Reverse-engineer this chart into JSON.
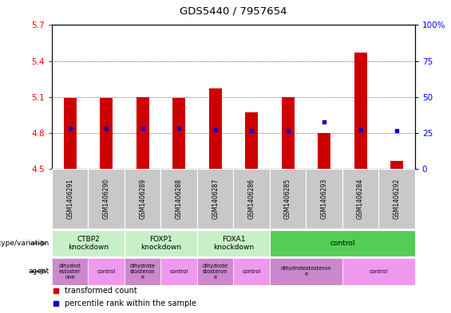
{
  "title": "GDS5440 / 7957654",
  "samples": [
    "GSM1406291",
    "GSM1406290",
    "GSM1406289",
    "GSM1406288",
    "GSM1406287",
    "GSM1406286",
    "GSM1406285",
    "GSM1406293",
    "GSM1406284",
    "GSM1406292"
  ],
  "transformed_count": [
    5.09,
    5.09,
    5.1,
    5.09,
    5.17,
    4.97,
    5.1,
    4.8,
    5.47,
    4.57
  ],
  "percentile_values": [
    28.5,
    28.5,
    28.5,
    28.5,
    27.5,
    26.5,
    26.5,
    33.0,
    27.5,
    26.5
  ],
  "ylim_left": [
    4.5,
    5.7
  ],
  "ylim_right": [
    0,
    100
  ],
  "yticks_left": [
    4.5,
    4.8,
    5.1,
    5.4,
    5.7
  ],
  "yticks_right": [
    0,
    25,
    50,
    75,
    100
  ],
  "bar_color": "#cc0000",
  "marker_color": "#0000cc",
  "bar_bottom": 4.5,
  "genotype_groups": [
    {
      "label": "CTBP2\nknockdown",
      "start": 0,
      "end": 2,
      "color": "#c8f0c8"
    },
    {
      "label": "FOXP1\nknockdown",
      "start": 2,
      "end": 4,
      "color": "#c8f0c8"
    },
    {
      "label": "FOXA1\nknockdown",
      "start": 4,
      "end": 6,
      "color": "#c8f0c8"
    },
    {
      "label": "control",
      "start": 6,
      "end": 10,
      "color": "#55cc55"
    }
  ],
  "agent_groups": [
    {
      "label": "dihydrot\nestoster\none",
      "start": 0,
      "end": 1,
      "color": "#cc88cc"
    },
    {
      "label": "control",
      "start": 1,
      "end": 2,
      "color": "#ee99ee"
    },
    {
      "label": "dihydrote\nstosteron\ne",
      "start": 2,
      "end": 3,
      "color": "#cc88cc"
    },
    {
      "label": "control",
      "start": 3,
      "end": 4,
      "color": "#ee99ee"
    },
    {
      "label": "dihydrote\nstosteron\ne",
      "start": 4,
      "end": 5,
      "color": "#cc88cc"
    },
    {
      "label": "control",
      "start": 5,
      "end": 6,
      "color": "#ee99ee"
    },
    {
      "label": "dihydrotestosteron\ne",
      "start": 6,
      "end": 8,
      "color": "#cc88cc"
    },
    {
      "label": "control",
      "start": 8,
      "end": 10,
      "color": "#ee99ee"
    }
  ]
}
